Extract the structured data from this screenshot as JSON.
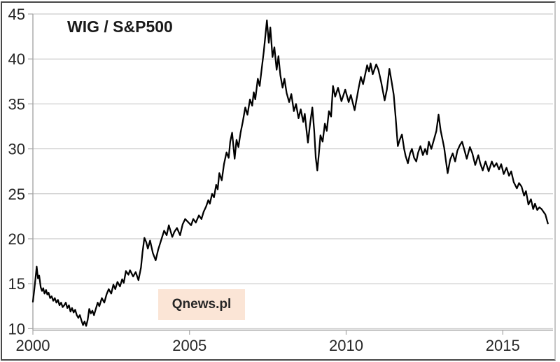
{
  "figure": {
    "title": "WIG / S&P500",
    "watermark": "Qnews.pl"
  },
  "chart_data": {
    "type": "line",
    "title": "WIG / S&P500",
    "series_name": "WIG to S&P500 ratio",
    "xlabel": "",
    "ylabel": "",
    "xlim": [
      2000,
      2016.6
    ],
    "ylim": [
      10,
      45
    ],
    "x_ticks": [
      2000,
      2005,
      2010,
      2015
    ],
    "y_ticks": [
      10,
      15,
      20,
      25,
      30,
      35,
      40,
      45
    ],
    "grid": "horizontal",
    "legend": "none",
    "line_color": "#000000",
    "grid_color": "#bfbfbf",
    "axis_color": "#a6a6a6",
    "label_color": "#262626",
    "points": [
      [
        2000.0,
        13.0
      ],
      [
        2000.04,
        14.2
      ],
      [
        2000.08,
        15.5
      ],
      [
        2000.12,
        16.9
      ],
      [
        2000.16,
        15.6
      ],
      [
        2000.2,
        15.9
      ],
      [
        2000.25,
        14.6
      ],
      [
        2000.29,
        14.2
      ],
      [
        2000.33,
        14.5
      ],
      [
        2000.37,
        13.9
      ],
      [
        2000.42,
        14.3
      ],
      [
        2000.46,
        13.8
      ],
      [
        2000.5,
        14.0
      ],
      [
        2000.55,
        13.4
      ],
      [
        2000.6,
        13.6
      ],
      [
        2000.65,
        13.1
      ],
      [
        2000.7,
        13.4
      ],
      [
        2000.75,
        12.9
      ],
      [
        2000.8,
        13.2
      ],
      [
        2000.85,
        12.6
      ],
      [
        2000.9,
        12.9
      ],
      [
        2000.95,
        12.4
      ],
      [
        2001.0,
        12.6
      ],
      [
        2001.05,
        12.9
      ],
      [
        2001.1,
        12.3
      ],
      [
        2001.15,
        12.6
      ],
      [
        2001.2,
        11.9
      ],
      [
        2001.25,
        12.3
      ],
      [
        2001.3,
        11.8
      ],
      [
        2001.35,
        12.1
      ],
      [
        2001.4,
        11.5
      ],
      [
        2001.45,
        11.2
      ],
      [
        2001.5,
        11.5
      ],
      [
        2001.55,
        10.9
      ],
      [
        2001.6,
        10.4
      ],
      [
        2001.65,
        10.8
      ],
      [
        2001.7,
        10.3
      ],
      [
        2001.75,
        11.0
      ],
      [
        2001.8,
        12.2
      ],
      [
        2001.85,
        11.7
      ],
      [
        2001.9,
        12.0
      ],
      [
        2001.95,
        11.5
      ],
      [
        2002.0,
        12.1
      ],
      [
        2002.07,
        12.9
      ],
      [
        2002.12,
        12.5
      ],
      [
        2002.2,
        13.4
      ],
      [
        2002.28,
        12.9
      ],
      [
        2002.35,
        13.8
      ],
      [
        2002.42,
        14.4
      ],
      [
        2002.5,
        13.9
      ],
      [
        2002.57,
        14.9
      ],
      [
        2002.63,
        14.4
      ],
      [
        2002.7,
        15.2
      ],
      [
        2002.78,
        14.7
      ],
      [
        2002.85,
        15.5
      ],
      [
        2002.9,
        15.1
      ],
      [
        2002.97,
        16.4
      ],
      [
        2003.05,
        16.0
      ],
      [
        2003.1,
        16.5
      ],
      [
        2003.2,
        15.8
      ],
      [
        2003.28,
        16.3
      ],
      [
        2003.37,
        15.4
      ],
      [
        2003.45,
        16.8
      ],
      [
        2003.5,
        18.5
      ],
      [
        2003.56,
        20.1
      ],
      [
        2003.62,
        19.6
      ],
      [
        2003.67,
        18.9
      ],
      [
        2003.74,
        19.8
      ],
      [
        2003.83,
        18.4
      ],
      [
        2003.92,
        17.6
      ],
      [
        2004.0,
        18.8
      ],
      [
        2004.08,
        19.7
      ],
      [
        2004.19,
        20.9
      ],
      [
        2004.27,
        20.4
      ],
      [
        2004.34,
        21.5
      ],
      [
        2004.45,
        20.2
      ],
      [
        2004.52,
        20.8
      ],
      [
        2004.6,
        21.2
      ],
      [
        2004.7,
        20.4
      ],
      [
        2004.78,
        21.6
      ],
      [
        2004.86,
        22.2
      ],
      [
        2004.97,
        21.8
      ],
      [
        2005.05,
        21.5
      ],
      [
        2005.12,
        22.2
      ],
      [
        2005.2,
        21.8
      ],
      [
        2005.3,
        22.6
      ],
      [
        2005.38,
        22.2
      ],
      [
        2005.45,
        23.0
      ],
      [
        2005.53,
        23.6
      ],
      [
        2005.6,
        24.3
      ],
      [
        2005.65,
        23.9
      ],
      [
        2005.72,
        25.0
      ],
      [
        2005.78,
        24.6
      ],
      [
        2005.85,
        26.0
      ],
      [
        2005.9,
        25.5
      ],
      [
        2005.95,
        27.3
      ],
      [
        2006.03,
        26.5
      ],
      [
        2006.1,
        28.3
      ],
      [
        2006.18,
        29.6
      ],
      [
        2006.25,
        29.0
      ],
      [
        2006.3,
        30.8
      ],
      [
        2006.36,
        31.8
      ],
      [
        2006.44,
        28.9
      ],
      [
        2006.5,
        31.0
      ],
      [
        2006.56,
        30.2
      ],
      [
        2006.63,
        31.8
      ],
      [
        2006.7,
        33.0
      ],
      [
        2006.78,
        34.6
      ],
      [
        2006.85,
        33.8
      ],
      [
        2006.93,
        35.5
      ],
      [
        2007.0,
        34.8
      ],
      [
        2007.05,
        36.3
      ],
      [
        2007.1,
        35.5
      ],
      [
        2007.18,
        37.8
      ],
      [
        2007.24,
        37.0
      ],
      [
        2007.3,
        38.8
      ],
      [
        2007.37,
        40.8
      ],
      [
        2007.42,
        42.5
      ],
      [
        2007.47,
        44.3
      ],
      [
        2007.53,
        41.8
      ],
      [
        2007.58,
        43.5
      ],
      [
        2007.65,
        40.2
      ],
      [
        2007.71,
        41.3
      ],
      [
        2007.78,
        38.8
      ],
      [
        2007.84,
        40.3
      ],
      [
        2007.9,
        38.2
      ],
      [
        2007.97,
        36.8
      ],
      [
        2008.03,
        37.8
      ],
      [
        2008.1,
        36.2
      ],
      [
        2008.18,
        35.2
      ],
      [
        2008.25,
        36.1
      ],
      [
        2008.33,
        34.2
      ],
      [
        2008.4,
        35.0
      ],
      [
        2008.48,
        33.4
      ],
      [
        2008.55,
        34.4
      ],
      [
        2008.63,
        33.0
      ],
      [
        2008.68,
        33.9
      ],
      [
        2008.73,
        32.2
      ],
      [
        2008.78,
        30.7
      ],
      [
        2008.85,
        32.8
      ],
      [
        2008.92,
        34.6
      ],
      [
        2008.98,
        32.0
      ],
      [
        2009.03,
        29.0
      ],
      [
        2009.08,
        27.6
      ],
      [
        2009.13,
        29.5
      ],
      [
        2009.18,
        31.5
      ],
      [
        2009.25,
        30.8
      ],
      [
        2009.32,
        32.8
      ],
      [
        2009.38,
        32.0
      ],
      [
        2009.45,
        34.2
      ],
      [
        2009.52,
        33.6
      ],
      [
        2009.58,
        37.0
      ],
      [
        2009.65,
        35.8
      ],
      [
        2009.74,
        36.8
      ],
      [
        2009.85,
        35.3
      ],
      [
        2009.97,
        36.6
      ],
      [
        2010.08,
        35.2
      ],
      [
        2010.15,
        36.0
      ],
      [
        2010.27,
        34.3
      ],
      [
        2010.4,
        36.8
      ],
      [
        2010.47,
        38.0
      ],
      [
        2010.54,
        37.2
      ],
      [
        2010.67,
        39.3
      ],
      [
        2010.73,
        38.6
      ],
      [
        2010.78,
        39.5
      ],
      [
        2010.85,
        38.3
      ],
      [
        2010.96,
        39.4
      ],
      [
        2011.03,
        38.8
      ],
      [
        2011.12,
        37.4
      ],
      [
        2011.23,
        35.4
      ],
      [
        2011.3,
        36.6
      ],
      [
        2011.38,
        38.9
      ],
      [
        2011.45,
        37.5
      ],
      [
        2011.52,
        36.0
      ],
      [
        2011.58,
        33.5
      ],
      [
        2011.65,
        30.3
      ],
      [
        2011.71,
        31.0
      ],
      [
        2011.78,
        31.6
      ],
      [
        2011.85,
        30.0
      ],
      [
        2011.9,
        29.2
      ],
      [
        2011.97,
        28.4
      ],
      [
        2012.04,
        29.5
      ],
      [
        2012.1,
        30.0
      ],
      [
        2012.17,
        29.0
      ],
      [
        2012.24,
        28.6
      ],
      [
        2012.3,
        29.6
      ],
      [
        2012.37,
        30.3
      ],
      [
        2012.45,
        29.3
      ],
      [
        2012.52,
        30.0
      ],
      [
        2012.58,
        29.4
      ],
      [
        2012.64,
        30.8
      ],
      [
        2012.72,
        30.0
      ],
      [
        2012.8,
        31.0
      ],
      [
        2012.88,
        32.0
      ],
      [
        2012.95,
        33.8
      ],
      [
        2013.02,
        32.0
      ],
      [
        2013.08,
        31.0
      ],
      [
        2013.13,
        30.1
      ],
      [
        2013.18,
        28.8
      ],
      [
        2013.24,
        27.3
      ],
      [
        2013.32,
        28.8
      ],
      [
        2013.4,
        29.5
      ],
      [
        2013.48,
        28.6
      ],
      [
        2013.55,
        29.8
      ],
      [
        2013.63,
        30.4
      ],
      [
        2013.7,
        30.8
      ],
      [
        2013.78,
        29.8
      ],
      [
        2013.85,
        28.9
      ],
      [
        2013.95,
        30.2
      ],
      [
        2014.03,
        29.5
      ],
      [
        2014.12,
        28.2
      ],
      [
        2014.22,
        29.3
      ],
      [
        2014.28,
        28.4
      ],
      [
        2014.36,
        27.6
      ],
      [
        2014.45,
        28.6
      ],
      [
        2014.55,
        27.5
      ],
      [
        2014.65,
        28.6
      ],
      [
        2014.72,
        28.0
      ],
      [
        2014.8,
        28.4
      ],
      [
        2014.88,
        27.7
      ],
      [
        2014.95,
        28.3
      ],
      [
        2015.03,
        27.2
      ],
      [
        2015.12,
        27.9
      ],
      [
        2015.2,
        27.0
      ],
      [
        2015.27,
        27.5
      ],
      [
        2015.35,
        26.3
      ],
      [
        2015.45,
        25.6
      ],
      [
        2015.52,
        26.2
      ],
      [
        2015.6,
        25.8
      ],
      [
        2015.68,
        24.8
      ],
      [
        2015.74,
        25.3
      ],
      [
        2015.82,
        23.8
      ],
      [
        2015.9,
        24.4
      ],
      [
        2015.97,
        23.3
      ],
      [
        2016.03,
        23.9
      ],
      [
        2016.1,
        23.2
      ],
      [
        2016.17,
        23.5
      ],
      [
        2016.24,
        23.3
      ],
      [
        2016.3,
        23.0
      ],
      [
        2016.36,
        22.7
      ],
      [
        2016.44,
        21.7
      ]
    ]
  }
}
